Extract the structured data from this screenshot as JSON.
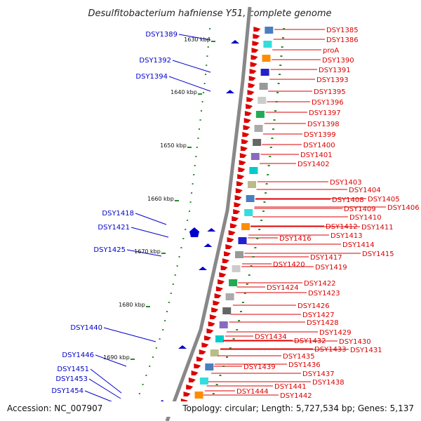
{
  "title": "Desulfitobacterium hafniense Y51, complete genome",
  "accession": "Accession: NC_007907",
  "topology": "Topology: circular; Length: 5,727,534 bp; Genes: 5,137",
  "colors": {
    "right_gene": "#dd0000",
    "left_gene": "#0000cc",
    "backbone": "#888888",
    "dot": "#2a8a2a"
  },
  "ticks": [
    "1630 kbp",
    "1640 kbp",
    "1650 kbp",
    "1660 kbp",
    "1670 kbp",
    "1680 kbp",
    "1690 kbp"
  ],
  "partial_tick": "kbp",
  "left_labels": [
    "DSY1389",
    "DSY1392",
    "DSY1394",
    "DSY1418",
    "DSY1421",
    "DSY1425",
    "DSY1440",
    "DSY1446",
    "DSY1451",
    "DSY1453",
    "DSY1454"
  ],
  "right_labels": [
    "DSY1385",
    "DSY1386",
    "proA",
    "DSY1390",
    "DSY1391",
    "DSY1393",
    "DSY1395",
    "DSY1396",
    "DSY1397",
    "DSY1398",
    "DSY1399",
    "DSY1400",
    "DSY1401",
    "DSY1402",
    "DSY1403",
    "DSY1404",
    "DSY1405",
    "DSY1406",
    "DSY1408",
    "DSY1409",
    "DSY1410",
    "DSY1411",
    "DSY1412",
    "DSY1413",
    "DSY1414",
    "DSY1415",
    "DSY1416",
    "DSY1417",
    "DSY1419",
    "DSY1420",
    "DSY1422",
    "DSY1423",
    "DSY1424",
    "DSY1426",
    "DSY1427",
    "DSY1428",
    "DSY1429",
    "DSY1430",
    "DSY1431",
    "DSY1432",
    "DSY1433",
    "DSY1434",
    "DSY1435",
    "DSY1436",
    "DSY1437",
    "DSY1438",
    "DSY1439",
    "DSY1441",
    "DSY1442",
    "DSY1444"
  ]
}
